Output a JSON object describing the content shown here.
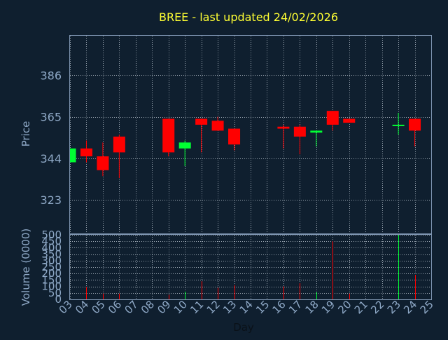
{
  "chart_data": {
    "type": "candlestick",
    "title": "BREE - last updated 24/02/2026",
    "xlabel": "Day",
    "price_panel": {
      "ylabel": "Price",
      "y_ticks": [
        323,
        344,
        365,
        386
      ],
      "ylim": [
        306,
        406
      ]
    },
    "volume_panel": {
      "ylabel": "Volume (0000)",
      "y_ticks": [
        0,
        50,
        100,
        150,
        200,
        250,
        300,
        350,
        400,
        450,
        500
      ],
      "ylim": [
        0,
        500
      ]
    },
    "x_ticks": [
      "03",
      "04",
      "05",
      "06",
      "07",
      "08",
      "09",
      "10",
      "11",
      "12",
      "13",
      "14",
      "15",
      "16",
      "17",
      "18",
      "19",
      "20",
      "21",
      "22",
      "23",
      "24",
      "25"
    ],
    "grid": true,
    "colors": {
      "background": "#0f1f2f",
      "plot_border": "#7f96b2",
      "grid": "#c8d2dc",
      "axis_text": "#8fa9c7",
      "title": "#ffff33",
      "up": "#00ff33",
      "down": "#ff0000"
    },
    "candles": [
      {
        "day": "03",
        "open": 342,
        "close": 349,
        "high": 349,
        "low": 342
      },
      {
        "day": "04",
        "open": 349,
        "close": 345,
        "high": 353,
        "low": 342
      },
      {
        "day": "05",
        "open": 345,
        "close": 338,
        "high": 352,
        "low": 335
      },
      {
        "day": "06",
        "open": 355,
        "close": 347,
        "high": 356,
        "low": 334
      },
      {
        "day": "09",
        "open": 364,
        "close": 347,
        "high": 364,
        "low": 345
      },
      {
        "day": "10",
        "open": 349,
        "close": 352,
        "high": 353,
        "low": 340
      },
      {
        "day": "11",
        "open": 364,
        "close": 361,
        "high": 364,
        "low": 347
      },
      {
        "day": "12",
        "open": 363,
        "close": 358,
        "high": 365,
        "low": 358
      },
      {
        "day": "13",
        "open": 359,
        "close": 351,
        "high": 359,
        "low": 348
      },
      {
        "day": "16",
        "open": 360,
        "close": 359,
        "high": 361,
        "low": 349
      },
      {
        "day": "17",
        "open": 360,
        "close": 355,
        "high": 361,
        "low": 346
      },
      {
        "day": "18",
        "open": 357,
        "close": 358,
        "high": 358,
        "low": 350
      },
      {
        "day": "19",
        "open": 368,
        "close": 361,
        "high": 368,
        "low": 358
      },
      {
        "day": "20",
        "open": 364,
        "close": 362,
        "high": 364,
        "low": 362
      },
      {
        "day": "23",
        "open": 361,
        "close": 361,
        "high": 367,
        "low": 356
      },
      {
        "day": "24",
        "open": 364,
        "close": 358,
        "high": 364,
        "low": 350
      }
    ],
    "volume": [
      {
        "day": "04",
        "value": 95,
        "dir": "down"
      },
      {
        "day": "05",
        "value": 45,
        "dir": "down"
      },
      {
        "day": "06",
        "value": 45,
        "dir": "down"
      },
      {
        "day": "09",
        "value": 35,
        "dir": "down"
      },
      {
        "day": "10",
        "value": 60,
        "dir": "up"
      },
      {
        "day": "11",
        "value": 140,
        "dir": "down"
      },
      {
        "day": "12",
        "value": 90,
        "dir": "down"
      },
      {
        "day": "13",
        "value": 110,
        "dir": "down"
      },
      {
        "day": "16",
        "value": 100,
        "dir": "down"
      },
      {
        "day": "17",
        "value": 125,
        "dir": "down"
      },
      {
        "day": "18",
        "value": 55,
        "dir": "up"
      },
      {
        "day": "19",
        "value": 450,
        "dir": "down"
      },
      {
        "day": "20",
        "value": 45,
        "dir": "down"
      },
      {
        "day": "23",
        "value": 500,
        "dir": "up"
      },
      {
        "day": "24",
        "value": 190,
        "dir": "down"
      }
    ]
  }
}
